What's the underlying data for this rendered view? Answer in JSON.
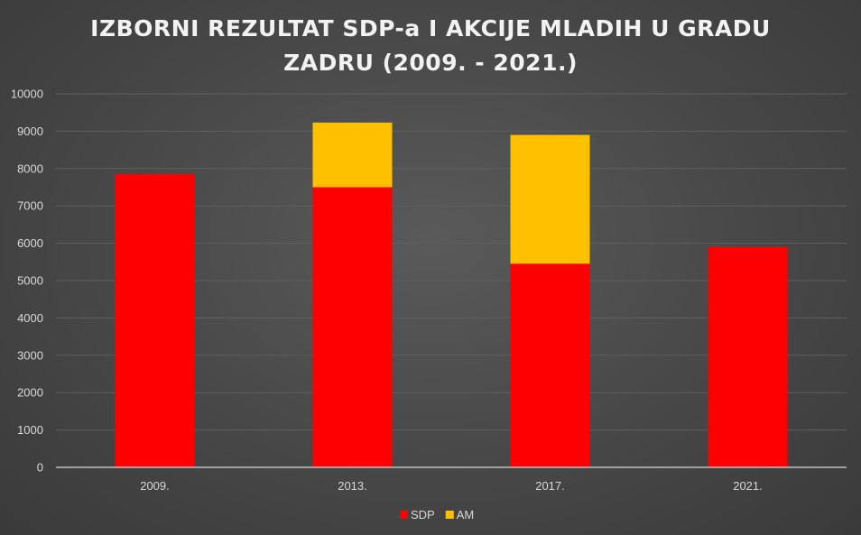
{
  "chart_data": {
    "type": "bar",
    "stacked": true,
    "title": "IZBORNI REZULTAT SDP-a I AKCIJE MLADIH U GRADU ZADRU (2009. - 2021.)",
    "title_lines": [
      "IZBORNI REZULTAT SDP-a I AKCIJE MLADIH U GRADU",
      "ZADRU (2009. - 2021.)"
    ],
    "categories": [
      "2009.",
      "2013.",
      "2017.",
      "2021."
    ],
    "series": [
      {
        "name": "SDP",
        "color": "#ff0000",
        "values": [
          7850,
          7500,
          5450,
          5900
        ]
      },
      {
        "name": "AM",
        "color": "#ffc000",
        "values": [
          0,
          1730,
          3450,
          0
        ]
      }
    ],
    "ylim": [
      0,
      10000
    ],
    "yticks": [
      0,
      1000,
      2000,
      3000,
      4000,
      5000,
      6000,
      7000,
      8000,
      9000,
      10000
    ],
    "xlabel": "",
    "ylabel": "",
    "grid": true,
    "legend": "bottom"
  }
}
